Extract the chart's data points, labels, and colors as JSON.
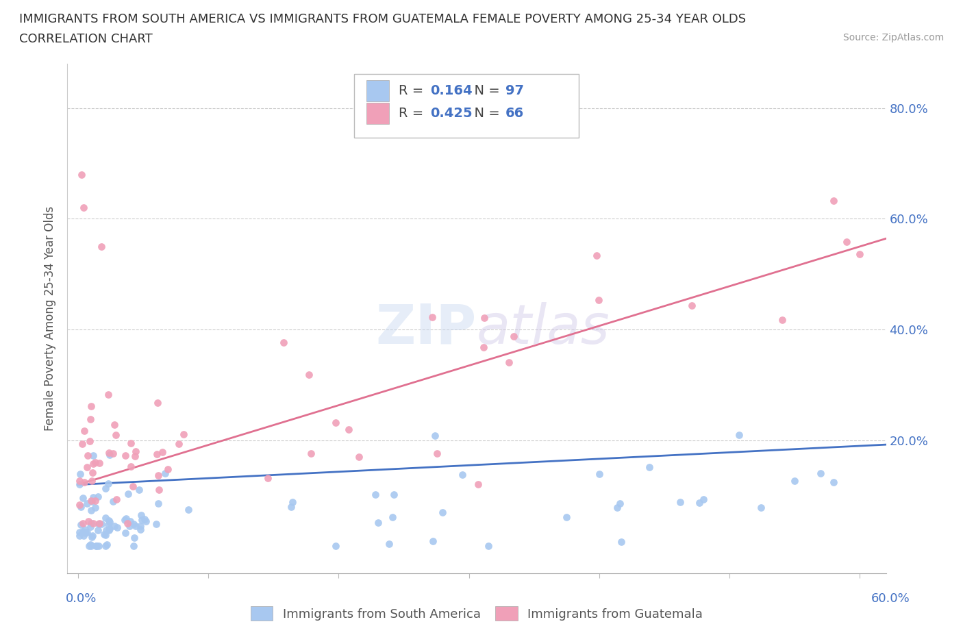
{
  "title_line1": "IMMIGRANTS FROM SOUTH AMERICA VS IMMIGRANTS FROM GUATEMALA FEMALE POVERTY AMONG 25-34 YEAR OLDS",
  "title_line2": "CORRELATION CHART",
  "source_text": "Source: ZipAtlas.com",
  "ylabel": "Female Poverty Among 25-34 Year Olds",
  "legend_label1": "Immigrants from South America",
  "legend_label2": "Immigrants from Guatemala",
  "r1": "0.164",
  "n1": "97",
  "r2": "0.425",
  "n2": "66",
  "color_blue": "#a8c8f0",
  "color_pink": "#f0a0b8",
  "color_blue_dark": "#4472c4",
  "color_pink_dark": "#e07090",
  "xlim": [
    0.0,
    0.62
  ],
  "ylim": [
    -0.04,
    0.88
  ],
  "ytick_vals": [
    0.2,
    0.4,
    0.6,
    0.8
  ],
  "ytick_labels": [
    "20.0%",
    "40.0%",
    "60.0%",
    "80.0%"
  ],
  "blue_line_x0": 0.0,
  "blue_line_x1": 0.6,
  "blue_line_y0": 0.12,
  "blue_line_y1": 0.19,
  "pink_line_x0": 0.0,
  "pink_line_x1": 0.6,
  "pink_line_y0": 0.12,
  "pink_line_y1": 0.55
}
